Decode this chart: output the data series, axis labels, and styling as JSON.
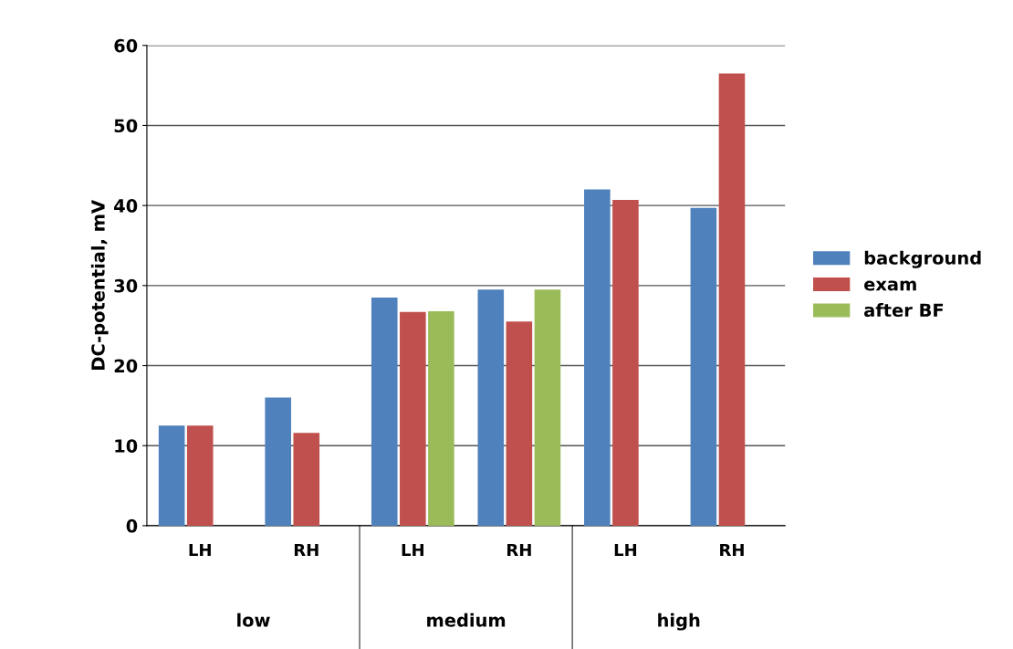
{
  "chart_data": {
    "type": "bar",
    "ylabel": "DC-potential, mV",
    "categories": [
      "LH",
      "RH",
      "LH",
      "RH",
      "LH",
      "RH"
    ],
    "annotations": [
      "low",
      "medium",
      "high"
    ],
    "series": [
      {
        "name": "background",
        "color": "#4f81bd",
        "values": [
          12.5,
          16,
          28.5,
          29.5,
          42,
          39.7
        ]
      },
      {
        "name": "exam",
        "color": "#c0504d",
        "values": [
          12.5,
          11.6,
          26.7,
          25.5,
          40.7,
          56.5
        ]
      },
      {
        "name": "after BF",
        "color": "#9bbb59",
        "values": [
          null,
          null,
          26.8,
          29.5,
          null,
          null
        ]
      }
    ],
    "ylim": [
      0,
      60
    ],
    "yticks": [
      0,
      10,
      20,
      30,
      40,
      50,
      60
    ],
    "grid": "y",
    "legend": "right"
  }
}
